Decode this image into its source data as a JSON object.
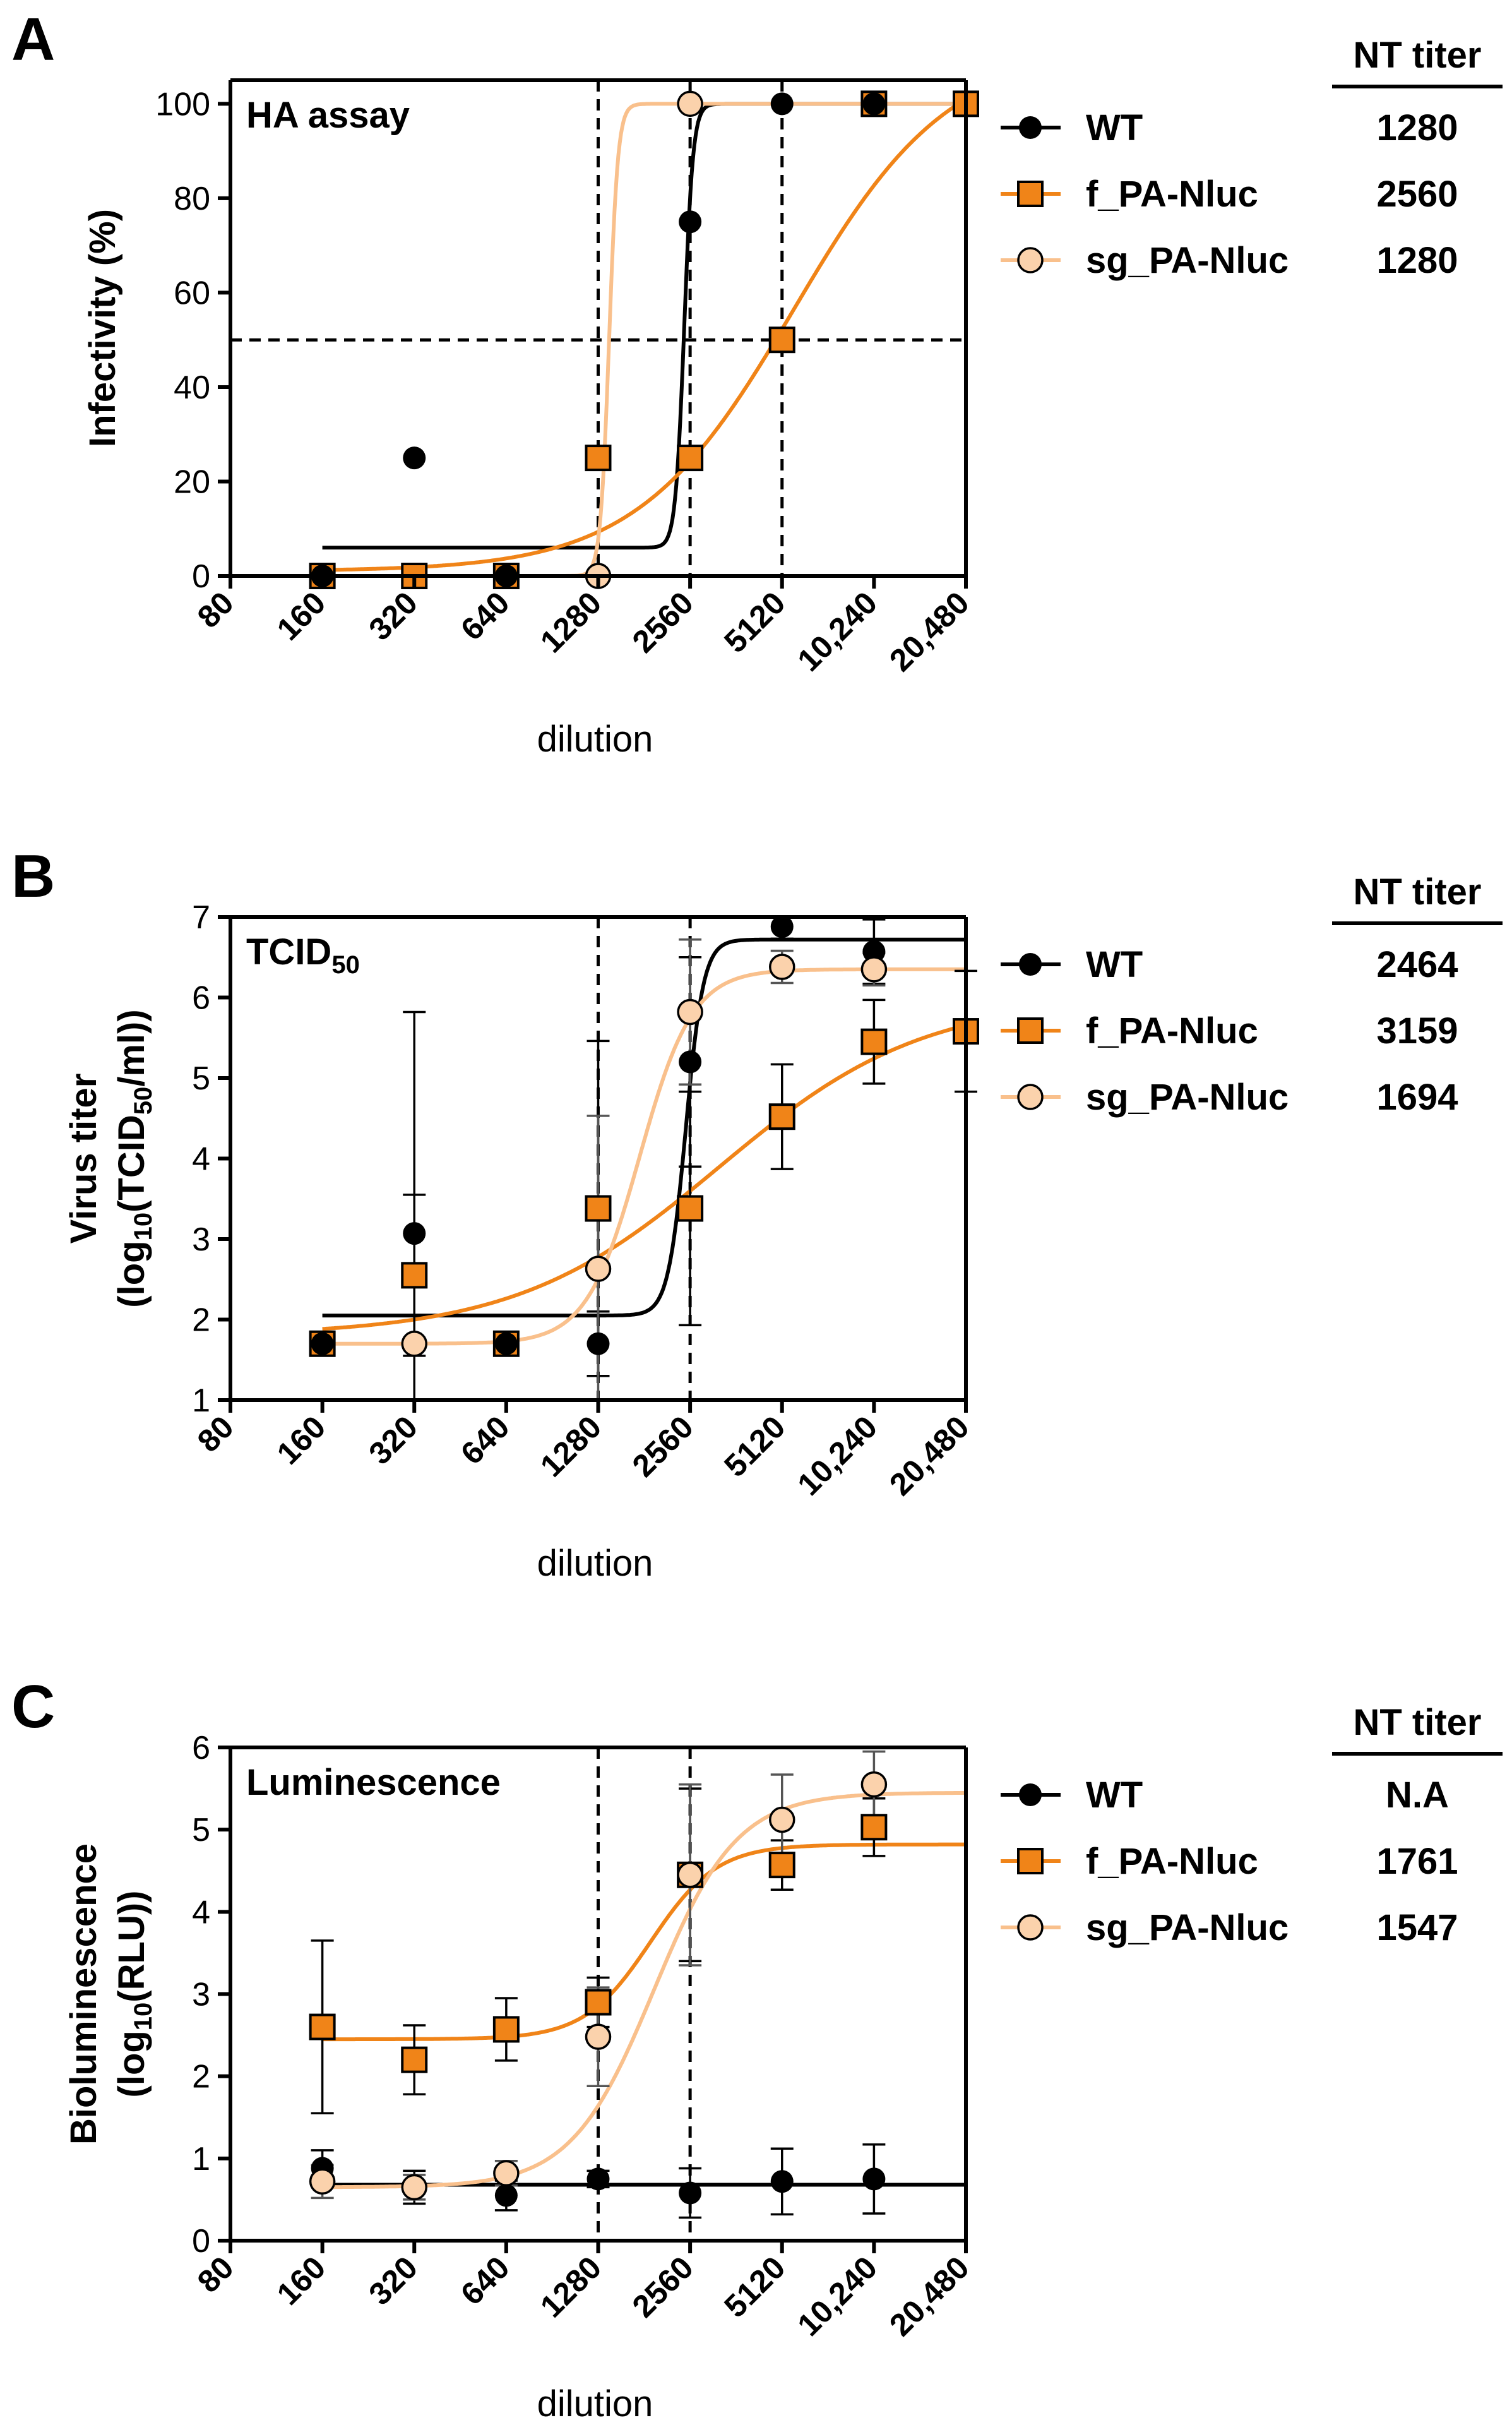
{
  "figure": {
    "legend_labels": [
      "WT",
      "f_PA-Nluc",
      "sg_PA-Nluc"
    ],
    "nt_header": "NT titer",
    "colors": {
      "WT": "#000000",
      "f_PA-Nluc": "#f08418",
      "sg_PA-Nluc": "#f9c08c",
      "sg_PA-Nluc_fill": "#fbd2ac",
      "axis": "#000000"
    }
  },
  "chart_data": [
    {
      "panel_letter": "A",
      "type": "scatter",
      "title": "HA assay",
      "xlabel": "dilution",
      "ylabel": "Infectivity (%)",
      "x_scale": "log2",
      "xlim": [
        80,
        20480
      ],
      "x_ticks": [
        80,
        160,
        320,
        640,
        1280,
        2560,
        5120,
        10240,
        20480
      ],
      "x_tick_labels": [
        "80",
        "160",
        "320",
        "640",
        "1280",
        "2560",
        "5120",
        "10,240",
        "20,480"
      ],
      "ylim": [
        0,
        105
      ],
      "y_ticks": [
        0,
        20,
        40,
        60,
        80,
        100
      ],
      "reference_lines": {
        "vertical": [
          1280,
          2560,
          5120
        ],
        "horizontal": [
          50
        ]
      },
      "nt_titer": [
        "1280",
        "2560",
        "1280"
      ],
      "series": [
        {
          "name": "WT",
          "marker": "circle",
          "points": [
            [
              160,
              0
            ],
            [
              320,
              25
            ],
            [
              640,
              0
            ],
            [
              1280,
              0
            ],
            [
              2560,
              75
            ],
            [
              5120,
              100
            ],
            [
              10240,
              100
            ]
          ],
          "fit": {
            "bottom": 6,
            "top": 100,
            "ec50": 2450,
            "hill": 30
          }
        },
        {
          "name": "f_PA-Nluc",
          "marker": "square",
          "points": [
            [
              160,
              0
            ],
            [
              320,
              0
            ],
            [
              640,
              0
            ],
            [
              1280,
              25
            ],
            [
              2560,
              25
            ],
            [
              5120,
              50
            ],
            [
              10240,
              100
            ],
            [
              20480,
              100
            ]
          ],
          "fit": {
            "bottom": 1,
            "top": 112,
            "ec50": 5600,
            "hill": 1.7
          }
        },
        {
          "name": "sg_PA-Nluc",
          "marker": "circle",
          "points": [
            [
              1280,
              0
            ],
            [
              2560,
              100
            ]
          ],
          "fit": {
            "bottom": 0,
            "top": 100,
            "ec50": 1390,
            "hill": 30
          }
        }
      ]
    },
    {
      "panel_letter": "B",
      "type": "scatter",
      "title": "TCID",
      "title_sub": "50",
      "xlabel": "dilution",
      "ylabel": "Virus titer",
      "ylabel2_pre": "(log",
      "ylabel2_sub1": "10",
      "ylabel2_mid": "(TCID",
      "ylabel2_sub2": "50",
      "ylabel2_post": "/ml))",
      "x_scale": "log2",
      "xlim": [
        80,
        20480
      ],
      "x_ticks": [
        80,
        160,
        320,
        640,
        1280,
        2560,
        5120,
        10240,
        20480
      ],
      "x_tick_labels": [
        "80",
        "160",
        "320",
        "640",
        "1280",
        "2560",
        "5120",
        "10,240",
        "20,480"
      ],
      "ylim": [
        1,
        7
      ],
      "y_ticks": [
        1,
        2,
        3,
        4,
        5,
        6,
        7
      ],
      "reference_lines": {
        "vertical": [
          1280,
          2560
        ],
        "horizontal": []
      },
      "nt_titer": [
        "2464",
        "3159",
        "1694"
      ],
      "series": [
        {
          "name": "WT",
          "marker": "circle",
          "points": [
            [
              160,
              1.7
            ],
            [
              320,
              3.07
            ],
            [
              640,
              1.7
            ],
            [
              1280,
              1.7
            ],
            [
              2560,
              5.2
            ],
            [
              5120,
              6.88
            ],
            [
              10240,
              6.57
            ]
          ],
          "errors": [
            0,
            2.75,
            0,
            0.4,
            1.3,
            0.15,
            0.4
          ],
          "fit": {
            "bottom": 2.05,
            "top": 6.72,
            "ec50": 2480,
            "hill": 15
          }
        },
        {
          "name": "f_PA-Nluc",
          "marker": "square",
          "points": [
            [
              160,
              1.7
            ],
            [
              320,
              2.55
            ],
            [
              640,
              1.7
            ],
            [
              1280,
              3.38
            ],
            [
              2560,
              3.38
            ],
            [
              5120,
              4.52
            ],
            [
              10240,
              5.45
            ],
            [
              20480,
              5.58
            ]
          ],
          "errors": [
            0,
            1.0,
            0,
            2.08,
            1.45,
            0.65,
            0.52,
            0.75
          ],
          "fit": {
            "bottom": 1.8,
            "top": 6.0,
            "ec50": 3200,
            "hill": 1.3
          }
        },
        {
          "name": "sg_PA-Nluc",
          "marker": "circle",
          "points": [
            [
              320,
              1.7
            ],
            [
              1280,
              2.63
            ],
            [
              2560,
              5.82
            ],
            [
              5120,
              6.38
            ],
            [
              10240,
              6.35
            ]
          ],
          "errors": [
            0,
            1.9,
            0.9,
            0.2,
            0.2
          ],
          "fit": {
            "bottom": 1.7,
            "top": 6.35,
            "ec50": 1750,
            "hill": 5
          }
        }
      ]
    },
    {
      "panel_letter": "C",
      "type": "scatter",
      "title": "Luminescence",
      "xlabel": "dilution",
      "ylabel": "Bioluminescence",
      "ylabel2_pre": "(log",
      "ylabel2_sub1": "10",
      "ylabel2_mid": "(RLU))",
      "x_scale": "log2",
      "xlim": [
        80,
        20480
      ],
      "x_ticks": [
        80,
        160,
        320,
        640,
        1280,
        2560,
        5120,
        10240,
        20480
      ],
      "x_tick_labels": [
        "80",
        "160",
        "320",
        "640",
        "1280",
        "2560",
        "5120",
        "10,240",
        "20,480"
      ],
      "ylim": [
        0,
        6
      ],
      "y_ticks": [
        0,
        1,
        2,
        3,
        4,
        5,
        6
      ],
      "reference_lines": {
        "vertical": [
          1280,
          2560
        ],
        "horizontal": []
      },
      "nt_titer": [
        "N.A",
        "1761",
        "1547"
      ],
      "series": [
        {
          "name": "WT",
          "marker": "circle",
          "points": [
            [
              160,
              0.88
            ],
            [
              320,
              0.65
            ],
            [
              640,
              0.55
            ],
            [
              1280,
              0.75
            ],
            [
              2560,
              0.58
            ],
            [
              5120,
              0.72
            ],
            [
              10240,
              0.75
            ]
          ],
          "errors": [
            0.22,
            0.2,
            0.18,
            0.1,
            0.3,
            0.4,
            0.42
          ],
          "fit": {
            "bottom": 0.68,
            "top": 0.68,
            "ec50": 2000,
            "hill": 1
          }
        },
        {
          "name": "f_PA-Nluc",
          "marker": "square",
          "points": [
            [
              160,
              2.6
            ],
            [
              320,
              2.2
            ],
            [
              640,
              2.57
            ],
            [
              1280,
              2.9
            ],
            [
              2560,
              4.45
            ],
            [
              5120,
              4.57
            ],
            [
              10240,
              5.03
            ]
          ],
          "errors": [
            1.05,
            0.42,
            0.38,
            0.3,
            1.05,
            0.3,
            0.35
          ],
          "fit": {
            "bottom": 2.45,
            "top": 4.82,
            "ec50": 1900,
            "hill": 4
          }
        },
        {
          "name": "sg_PA-Nluc",
          "marker": "circle",
          "points": [
            [
              160,
              0.72
            ],
            [
              320,
              0.65
            ],
            [
              640,
              0.82
            ],
            [
              1280,
              2.48
            ],
            [
              2560,
              4.45
            ],
            [
              5120,
              5.12
            ],
            [
              10240,
              5.55
            ]
          ],
          "errors": [
            0.2,
            0.15,
            0.15,
            0.6,
            1.1,
            0.55,
            0.4
          ],
          "fit": {
            "bottom": 0.65,
            "top": 5.45,
            "ec50": 1950,
            "hill": 3.2
          }
        }
      ]
    }
  ]
}
